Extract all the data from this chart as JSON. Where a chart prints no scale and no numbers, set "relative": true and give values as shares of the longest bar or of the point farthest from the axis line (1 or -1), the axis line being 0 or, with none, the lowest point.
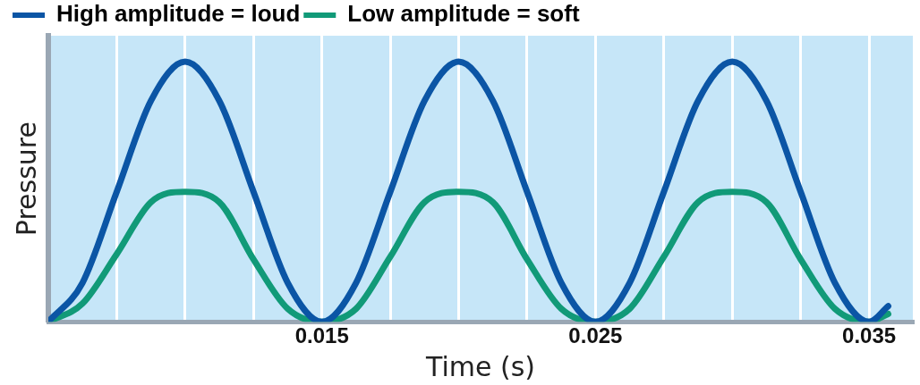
{
  "chart_data": {
    "type": "line",
    "relative": true,
    "xlabel": "Time (s)",
    "ylabel": "Pressure",
    "legend": "top left",
    "grid": "x",
    "marker": "none",
    "line_style": "solid",
    "x": [
      0.005,
      0.00625,
      0.0075,
      0.00875,
      0.01,
      0.01125,
      0.0125,
      0.01375,
      0.015,
      0.01625,
      0.0175,
      0.01875,
      0.02,
      0.02125,
      0.0225,
      0.02375,
      0.025,
      0.02625,
      0.0275,
      0.02875,
      0.03,
      0.03125,
      0.0325,
      0.03375,
      0.035,
      0.0357
    ],
    "xlim": [
      0.005,
      0.0366
    ],
    "xticks": [
      {
        "value": 0.0075,
        "label": null
      },
      {
        "value": 0.01,
        "label": null
      },
      {
        "value": 0.0125,
        "label": null
      },
      0.015,
      {
        "value": 0.0175,
        "label": null
      },
      {
        "value": 0.02,
        "label": null
      },
      {
        "value": 0.0225,
        "label": null
      },
      0.025,
      {
        "value": 0.0275,
        "label": null
      },
      {
        "value": 0.03,
        "label": null
      },
      {
        "value": 0.0325,
        "label": null
      },
      0.035
    ],
    "series": [
      {
        "name": "High amplitude = loud",
        "color": "#0b55a5",
        "values": [
          0,
          0.15,
          0.5,
          0.85,
          1,
          0.85,
          0.5,
          0.15,
          0,
          0.15,
          0.5,
          0.85,
          1,
          0.85,
          0.5,
          0.15,
          0,
          0.15,
          0.5,
          0.85,
          1,
          0.85,
          0.5,
          0.15,
          0,
          0.06
        ]
      },
      {
        "name": "Low amplitude = soft",
        "color": "#119a78",
        "values": [
          0,
          0.07,
          0.26,
          0.46,
          0.5,
          0.46,
          0.24,
          0.05,
          0,
          0.05,
          0.25,
          0.46,
          0.5,
          0.46,
          0.24,
          0.05,
          0,
          0.05,
          0.25,
          0.46,
          0.5,
          0.46,
          0.24,
          0.05,
          0,
          0.03
        ]
      }
    ]
  }
}
